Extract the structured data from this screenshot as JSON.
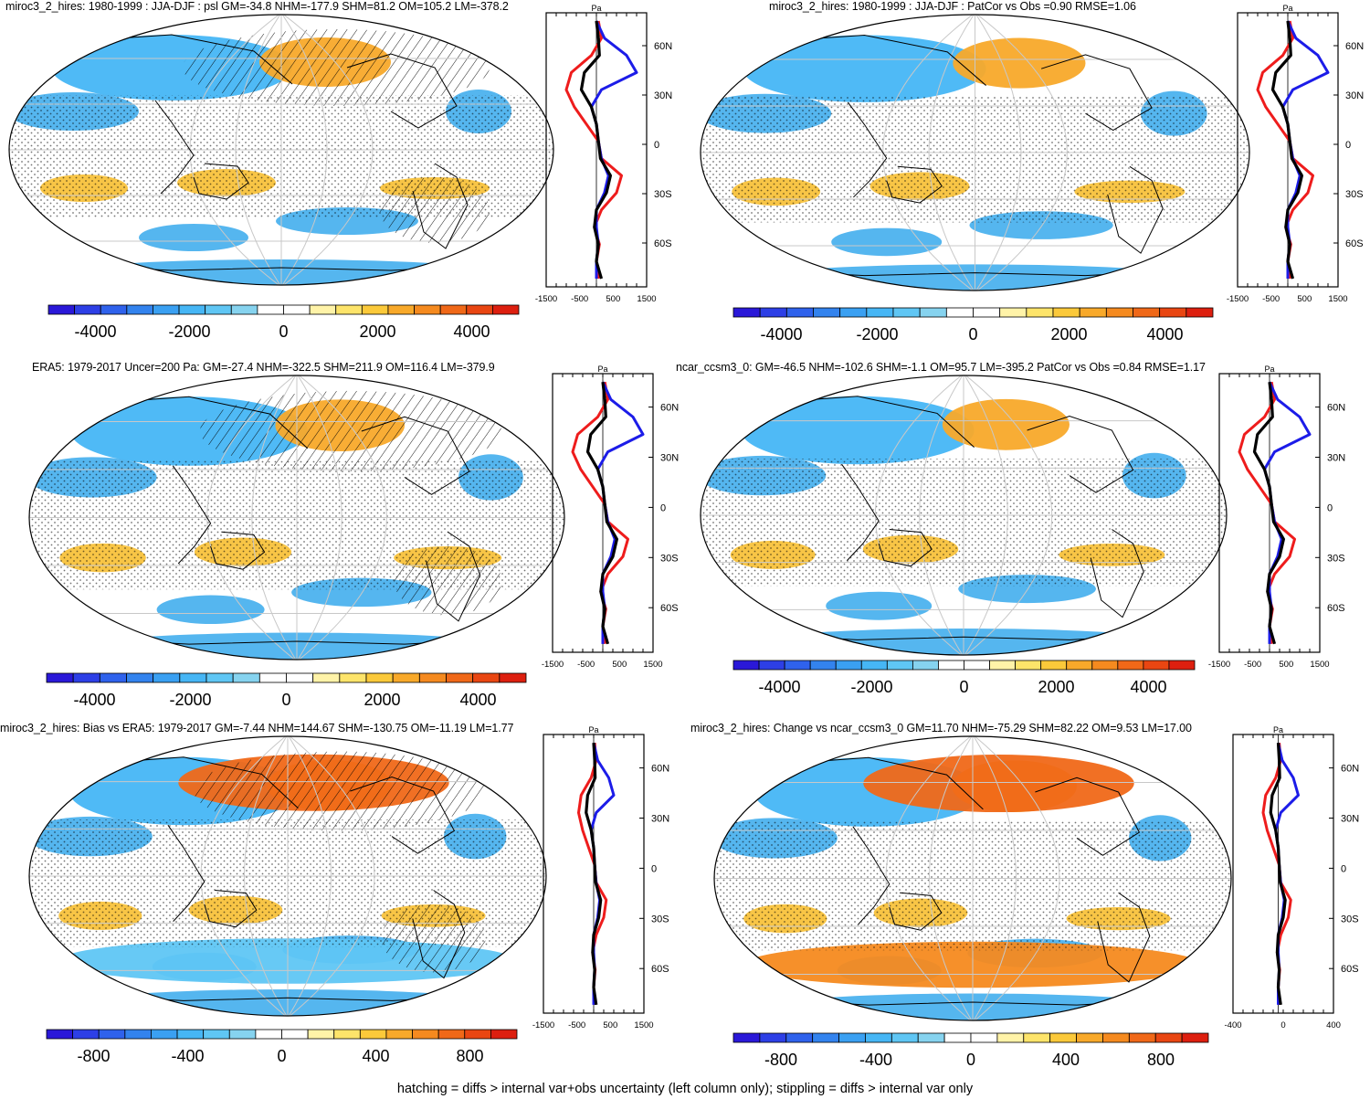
{
  "panels": [
    {
      "title": "miroc3_2_hires: 1980-1999 : JJA-DJF : psl GM=-34.8 NHM=-177.9 SHM=81.2 OM=105.2 LM=-378.2",
      "profile_unit": "Pa",
      "lat_ticks": [
        "60N",
        "30N",
        "0",
        "30S",
        "60S"
      ],
      "profile_x_ticks": [
        "-1500",
        "-500",
        "500",
        "1500"
      ],
      "colorbar_labels": [
        "-4000",
        "-2000",
        "0",
        "2000",
        "4000"
      ],
      "hatched": true
    },
    {
      "title": "miroc3_2_hires: 1980-1999 : JJA-DJF : PatCor vs Obs =0.90 RMSE=1.06",
      "profile_unit": "Pa",
      "lat_ticks": [
        "60N",
        "30N",
        "0",
        "30S",
        "60S"
      ],
      "profile_x_ticks": [
        "-1500",
        "-500",
        "500",
        "1500"
      ],
      "colorbar_labels": [
        "-4000",
        "-2000",
        "0",
        "2000",
        "4000"
      ],
      "hatched": false
    },
    {
      "title": "ERA5: 1979-2017 Uncer=200 Pa: GM=-27.4 NHM=-322.5 SHM=211.9 OM=116.4 LM=-379.9",
      "profile_unit": "Pa",
      "lat_ticks": [
        "60N",
        "30N",
        "0",
        "30S",
        "60S"
      ],
      "profile_x_ticks": [
        "-1500",
        "-500",
        "500",
        "1500"
      ],
      "colorbar_labels": [
        "-4000",
        "-2000",
        "0",
        "2000",
        "4000"
      ],
      "hatched": true
    },
    {
      "title": "ncar_ccsm3_0: GM=-46.5 NHM=-102.6 SHM=-1.1 OM=95.7 LM=-395.2 PatCor vs Obs =0.84 RMSE=1.17",
      "profile_unit": "Pa",
      "lat_ticks": [
        "60N",
        "30N",
        "0",
        "30S",
        "60S"
      ],
      "profile_x_ticks": [
        "-1500",
        "-500",
        "500",
        "1500"
      ],
      "colorbar_labels": [
        "-4000",
        "-2000",
        "0",
        "2000",
        "4000"
      ],
      "hatched": false
    },
    {
      "title": "miroc3_2_hires: Bias vs ERA5: 1979-2017 GM=-7.44 NHM=144.67 SHM=-130.75 OM=-11.19 LM=1.77",
      "profile_unit": "Pa",
      "lat_ticks": [
        "60N",
        "30N",
        "0",
        "30S",
        "60S"
      ],
      "profile_x_ticks": [
        "-1500",
        "-500",
        "500",
        "1500"
      ],
      "colorbar_labels": [
        "-800",
        "-400",
        "0",
        "400",
        "800"
      ],
      "hatched": true
    },
    {
      "title": "miroc3_2_hires: Change vs ncar_ccsm3_0 GM=11.70 NHM=-75.29 SHM=82.22 OM=9.53 LM=17.00",
      "profile_unit": "Pa",
      "lat_ticks": [
        "60N",
        "30N",
        "0",
        "30S",
        "60S"
      ],
      "profile_x_ticks": [
        "-400",
        "0",
        "400"
      ],
      "colorbar_labels": [
        "-800",
        "-400",
        "0",
        "400",
        "800"
      ],
      "hatched": false
    }
  ],
  "footer": "hatching = diffs > internal var+obs uncertainty (left column only); stippling = diffs > internal var only",
  "colors": {
    "scale": [
      "#2a18d8",
      "#2d3fe6",
      "#2f62ec",
      "#3383ee",
      "#3aa0f2",
      "#46b6f5",
      "#5fc6f4",
      "#86d3ef",
      "#ffffff",
      "#ffffff",
      "#fff3a8",
      "#fde46a",
      "#fbc93a",
      "#f8a92a",
      "#f58a1f",
      "#f06818",
      "#e94612",
      "#dd1f0f"
    ],
    "positive": "#f8c23c",
    "negative": "#4cb2ee",
    "red_line": "#ee1c1c",
    "blue_line": "#1c1ce8",
    "black_line": "#000000"
  }
}
